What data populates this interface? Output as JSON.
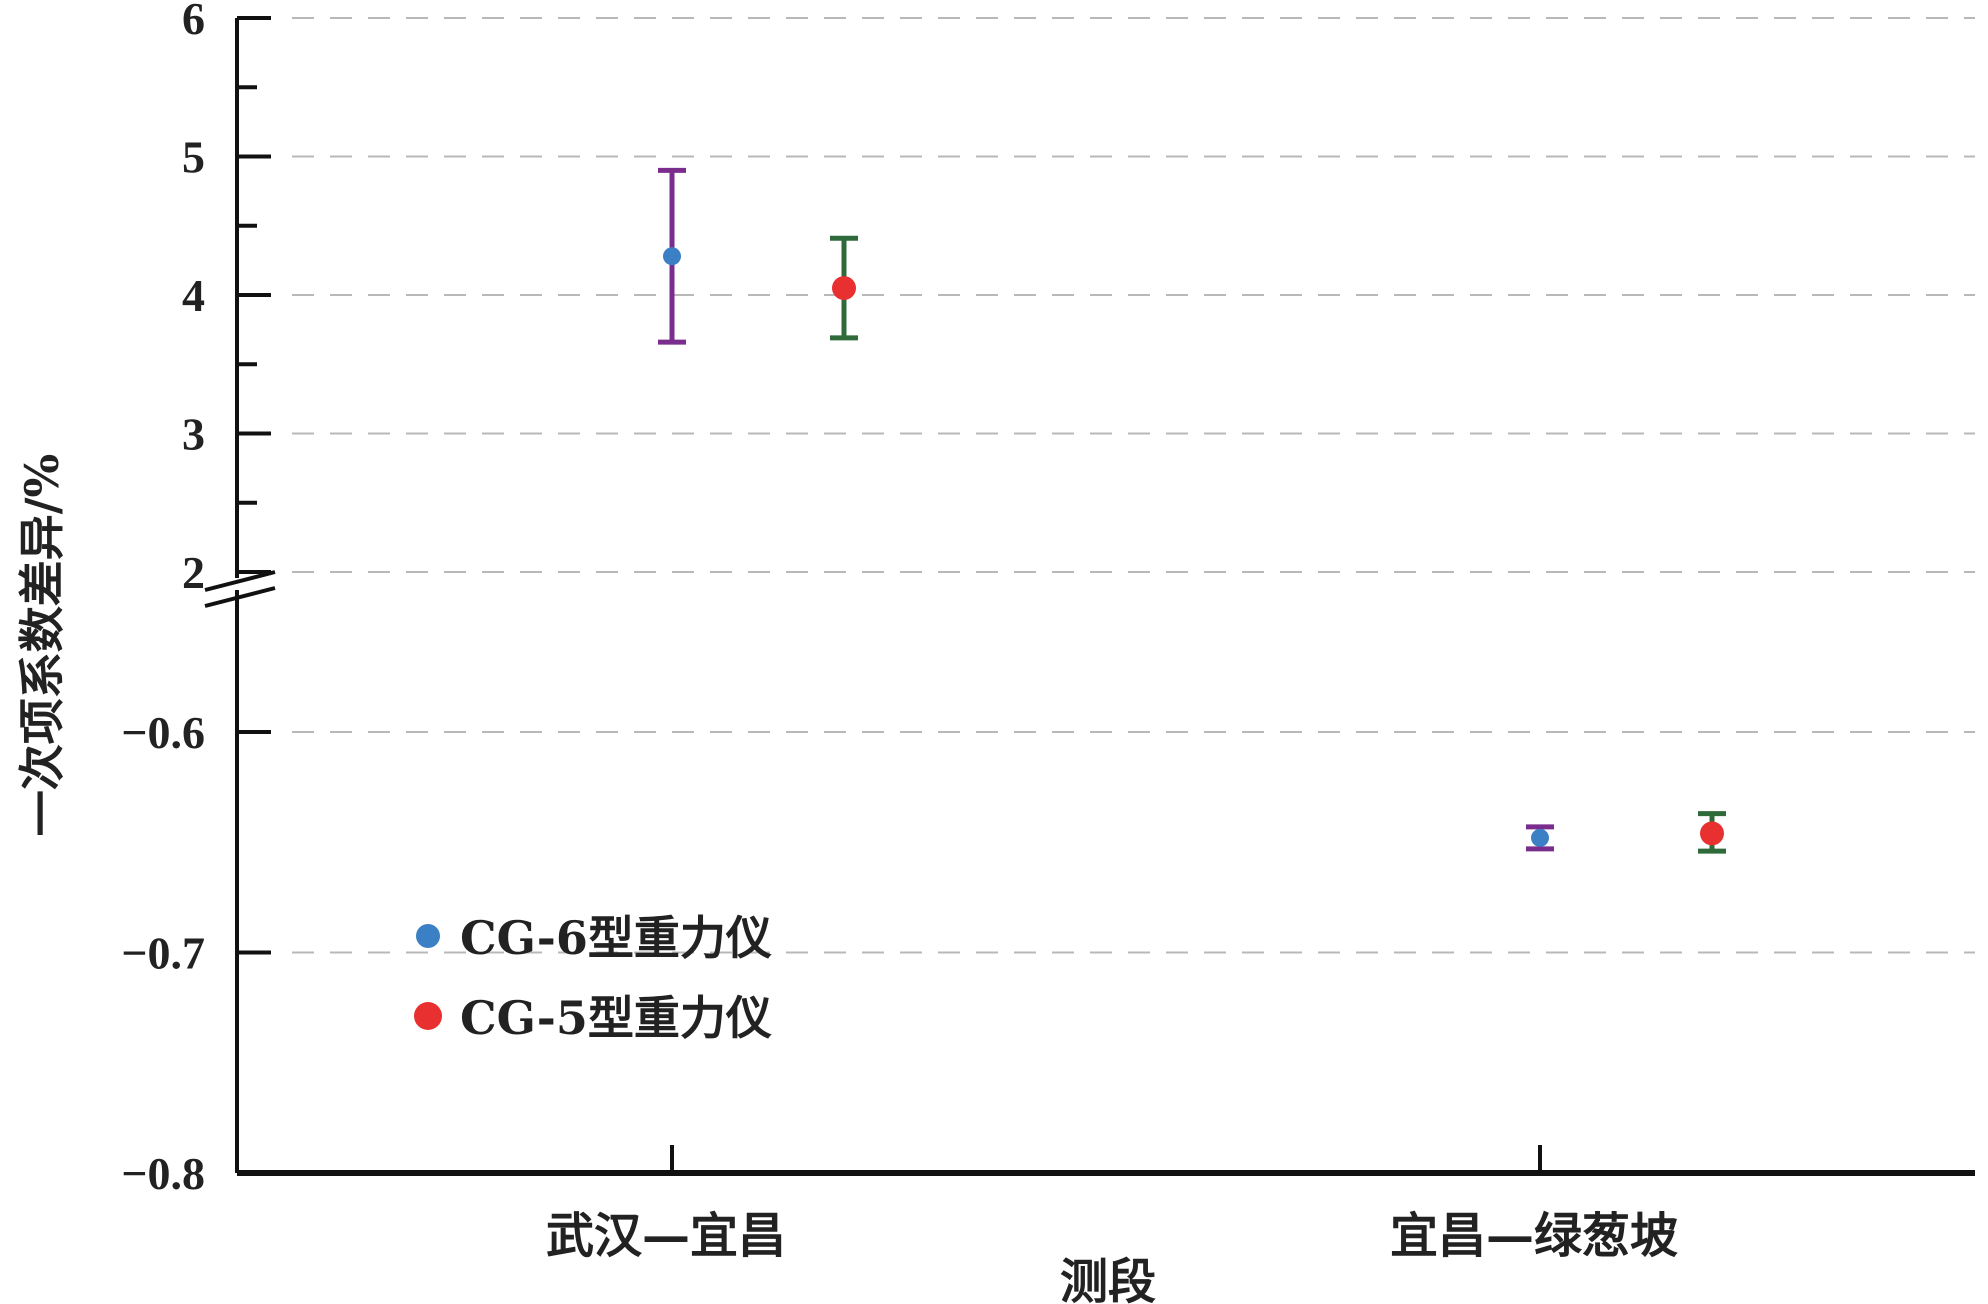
{
  "chart_data": {
    "type": "scatter",
    "title": "",
    "xlabel": "测段",
    "ylabel": "一次项系数差异/%",
    "categories": [
      "武汉—宜昌",
      "宜昌—绿葱坡"
    ],
    "y_axis_break": true,
    "upper_segment": {
      "ylim": [
        2,
        6
      ],
      "ticks": [
        "2",
        "3",
        "4",
        "5",
        "6"
      ]
    },
    "lower_segment": {
      "ylim": [
        -0.8,
        -0.6
      ],
      "ticks": [
        "−0.6",
        "−0.7",
        "−0.8"
      ]
    },
    "grid": "horizontal dashed",
    "legend_placement": "lower-left",
    "series": [
      {
        "name": "CG-6型重力仪",
        "color": "#3b7fc4",
        "errorbar_color": "#7b2d8e",
        "points": [
          {
            "category": "武汉—宜昌",
            "y": 4.28,
            "low": 3.66,
            "high": 4.9
          },
          {
            "category": "宜昌—绿葱坡",
            "y": -0.648,
            "low": -0.653,
            "high": -0.643
          }
        ]
      },
      {
        "name": "CG-5型重力仪",
        "color": "#e83030",
        "errorbar_color": "#2f6b3a",
        "points": [
          {
            "category": "武汉—宜昌",
            "y": 4.05,
            "low": 3.69,
            "high": 4.41
          },
          {
            "category": "宜昌—绿葱坡",
            "y": -0.646,
            "low": -0.654,
            "high": -0.637
          }
        ]
      }
    ]
  }
}
